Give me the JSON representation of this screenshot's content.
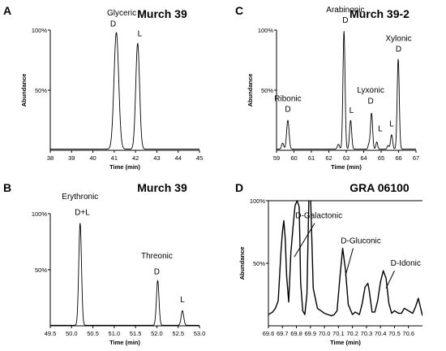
{
  "chart_data": [
    {
      "panel": "A",
      "type": "line",
      "title": "Murch 39",
      "xlabel": "Time (min)",
      "ylabel": "Abundance",
      "xlim": [
        38,
        45
      ],
      "ylim": [
        0,
        100
      ],
      "xticks": [
        "38",
        "39",
        "40",
        "41",
        "42",
        "43",
        "44",
        "45"
      ],
      "yticks": [
        "50%",
        "100%"
      ],
      "baseline": 1,
      "peaks": [
        {
          "x": 41.1,
          "y": 97,
          "w": 0.11
        },
        {
          "x": 42.1,
          "y": 88,
          "w": 0.09
        }
      ],
      "annotations": [
        {
          "text": "Glyceric",
          "x": 41.35,
          "y": 112
        },
        {
          "text": "D",
          "x": 40.95,
          "y": 103
        },
        {
          "text": "L",
          "x": 42.2,
          "y": 95
        }
      ]
    },
    {
      "panel": "C",
      "type": "line",
      "title": "Murch 39-2",
      "xlabel": "Time (min)",
      "ylabel": "Abundance",
      "xlim": [
        59,
        67
      ],
      "ylim": [
        0,
        100
      ],
      "xticks": [
        "59",
        "60",
        "61",
        "62",
        "63",
        "64",
        "65",
        "66",
        "67"
      ],
      "yticks": [
        "50%",
        "100%"
      ],
      "baseline": 1,
      "peaks": [
        {
          "x": 59.35,
          "y": 5,
          "w": 0.06
        },
        {
          "x": 59.65,
          "y": 24,
          "w": 0.07
        },
        {
          "x": 62.55,
          "y": 4,
          "w": 0.06
        },
        {
          "x": 62.87,
          "y": 98,
          "w": 0.06
        },
        {
          "x": 63.25,
          "y": 24,
          "w": 0.06
        },
        {
          "x": 64.3,
          "y": 4,
          "w": 0.05
        },
        {
          "x": 64.45,
          "y": 30,
          "w": 0.06
        },
        {
          "x": 64.75,
          "y": 6,
          "w": 0.05
        },
        {
          "x": 65.4,
          "y": 3,
          "w": 0.05
        },
        {
          "x": 65.6,
          "y": 12,
          "w": 0.06
        },
        {
          "x": 65.98,
          "y": 75,
          "w": 0.06
        }
      ],
      "annotations": [
        {
          "text": "Arabinonic",
          "x": 62.95,
          "y": 115
        },
        {
          "text": "D",
          "x": 62.95,
          "y": 106
        },
        {
          "text": "Ribonic",
          "x": 59.65,
          "y": 41
        },
        {
          "text": "D",
          "x": 59.65,
          "y": 32
        },
        {
          "text": "L",
          "x": 63.3,
          "y": 31
        },
        {
          "text": "Lyxonic",
          "x": 64.4,
          "y": 48
        },
        {
          "text": "D",
          "x": 64.4,
          "y": 39
        },
        {
          "text": "L",
          "x": 64.95,
          "y": 16
        },
        {
          "text": "L",
          "x": 65.6,
          "y": 20
        },
        {
          "text": "Xylonic",
          "x": 66.0,
          "y": 91
        },
        {
          "text": "D",
          "x": 66.0,
          "y": 82
        }
      ]
    },
    {
      "panel": "B",
      "type": "line",
      "title": "Murch 39",
      "xlabel": "Time (min)",
      "ylabel": "",
      "xlim": [
        49.5,
        53.0
      ],
      "ylim": [
        0,
        100
      ],
      "xticks": [
        "49.5",
        "50.0",
        "50.5",
        "51.0",
        "51.5",
        "52.0",
        "52.5",
        "53.0"
      ],
      "yticks": [
        "50%",
        "100%"
      ],
      "baseline": 0.5,
      "peaks": [
        {
          "x": 50.2,
          "y": 91,
          "w": 0.032
        },
        {
          "x": 52.02,
          "y": 40,
          "w": 0.03
        },
        {
          "x": 52.6,
          "y": 13,
          "w": 0.03
        }
      ],
      "annotations": [
        {
          "text": "Erythronic",
          "x": 50.2,
          "y": 113
        },
        {
          "text": "D+L",
          "x": 50.25,
          "y": 99
        },
        {
          "text": "Threonic",
          "x": 52.0,
          "y": 60
        },
        {
          "text": "D",
          "x": 52.0,
          "y": 46
        },
        {
          "text": "L",
          "x": 52.6,
          "y": 21
        }
      ]
    },
    {
      "panel": "D",
      "type": "line",
      "title": "GRA 06100",
      "xlabel": "Time (min)",
      "ylabel": "Abundance",
      "xlim": [
        69.6,
        70.7
      ],
      "ylim": [
        0,
        100
      ],
      "xticks": [
        "69.6",
        "69.7",
        "69.8",
        "69.9",
        "70.0",
        "70.1",
        "70.2",
        "70.3",
        "70.4",
        "70.5",
        "70.6"
      ],
      "yticks": [
        "50%",
        "100%"
      ],
      "x": [
        69.6,
        69.63,
        69.65,
        69.67,
        69.69,
        69.7,
        69.71,
        69.72,
        69.73,
        69.745,
        69.76,
        69.775,
        69.79,
        69.805,
        69.82,
        69.83,
        69.845,
        69.86,
        69.875,
        69.89,
        69.9,
        69.92,
        69.95,
        70.0,
        70.05,
        70.07,
        70.09,
        70.11,
        70.13,
        70.15,
        70.17,
        70.2,
        70.22,
        70.25,
        70.27,
        70.29,
        70.31,
        70.32,
        70.34,
        70.36,
        70.38,
        70.4,
        70.42,
        70.44,
        70.46,
        70.48,
        70.5,
        70.53,
        70.55,
        70.57,
        70.6,
        70.63,
        70.65,
        70.67,
        70.7
      ],
      "y": [
        9,
        11,
        14,
        20,
        60,
        75,
        84,
        70,
        40,
        19,
        58,
        78,
        96,
        100,
        95,
        35,
        12,
        9,
        25,
        108,
        108,
        30,
        14,
        10,
        8,
        9,
        12,
        38,
        62,
        45,
        17,
        9,
        11,
        9,
        18,
        31,
        34,
        28,
        11,
        11,
        20,
        35,
        44,
        38,
        18,
        10,
        12,
        10,
        10,
        14,
        12,
        10,
        15,
        22,
        8
      ],
      "annotations": [
        {
          "text": "D-Galactonic",
          "x": 69.96,
          "y": 86
        },
        {
          "text": "D-Gluconic",
          "x": 70.26,
          "y": 66
        },
        {
          "text": "D-Idonic",
          "x": 70.58,
          "y": 48
        }
      ]
    }
  ]
}
